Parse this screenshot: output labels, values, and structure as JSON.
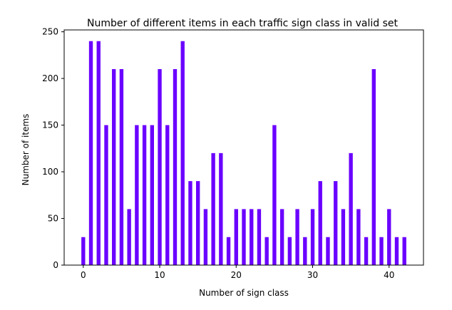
{
  "chart_data": {
    "type": "bar",
    "title": "Number of different items in each traffic sign class in valid set",
    "xlabel": "Number of sign class",
    "ylabel": "Number of items",
    "bar_color": "#6a00ff",
    "xlim": [
      -2.5,
      44.5
    ],
    "ylim": [
      0,
      252
    ],
    "xticks": [
      0,
      10,
      20,
      30,
      40
    ],
    "yticks": [
      0,
      50,
      100,
      150,
      200,
      250
    ],
    "grid": false,
    "categories": [
      0,
      1,
      2,
      3,
      4,
      5,
      6,
      7,
      8,
      9,
      10,
      11,
      12,
      13,
      14,
      15,
      16,
      17,
      18,
      19,
      20,
      21,
      22,
      23,
      24,
      25,
      26,
      27,
      28,
      29,
      30,
      31,
      32,
      33,
      34,
      35,
      36,
      37,
      38,
      39,
      40,
      41,
      42
    ],
    "values": [
      30,
      240,
      240,
      150,
      210,
      210,
      60,
      150,
      150,
      150,
      210,
      150,
      210,
      240,
      90,
      90,
      60,
      120,
      120,
      30,
      60,
      60,
      60,
      60,
      30,
      150,
      60,
      30,
      60,
      30,
      60,
      90,
      30,
      90,
      60,
      120,
      60,
      30,
      210,
      30,
      60,
      30,
      30
    ]
  }
}
